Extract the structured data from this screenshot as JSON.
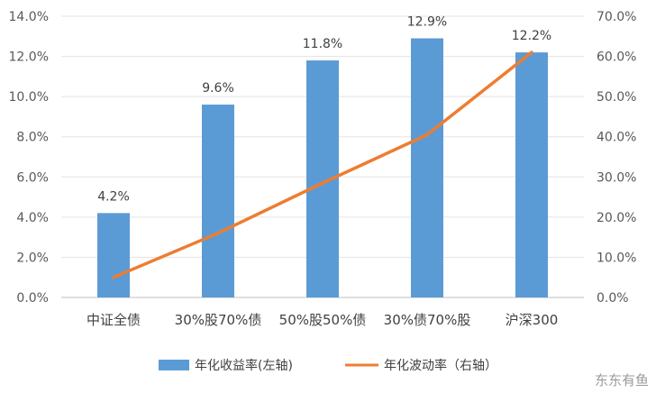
{
  "chart_data": {
    "type": "bar",
    "categories": [
      "中证全债",
      "30%股70%债",
      "50%股50%债",
      "30%债70%股",
      "沪深300"
    ],
    "series": [
      {
        "name": "年化收益率(左轴)",
        "type": "bar",
        "axis": "left",
        "values": [
          4.2,
          9.6,
          11.8,
          12.9,
          12.2
        ],
        "labels": [
          "4.2%",
          "9.6%",
          "11.8%",
          "12.9%",
          "12.2%"
        ],
        "color": "#5b9bd5"
      },
      {
        "name": "年化波动率（右轴）",
        "type": "line",
        "axis": "right",
        "values": [
          5.0,
          16.0,
          28.5,
          40.5,
          61.0
        ],
        "color": "#ed7d31"
      }
    ],
    "y_left": {
      "lim": [
        0,
        14
      ],
      "ticks": [
        0,
        2,
        4,
        6,
        8,
        10,
        12,
        14
      ],
      "tick_labels": [
        "0.0%",
        "2.0%",
        "4.0%",
        "6.0%",
        "8.0%",
        "10.0%",
        "12.0%",
        "14.0%"
      ]
    },
    "y_right": {
      "lim": [
        0,
        70
      ],
      "ticks": [
        0,
        10,
        20,
        30,
        40,
        50,
        60,
        70
      ],
      "tick_labels": [
        "0.0%",
        "10.0%",
        "20.0%",
        "30.0%",
        "40.0%",
        "50.0%",
        "60.0%",
        "70.0%"
      ]
    },
    "grid": true,
    "legend": "bottom"
  },
  "watermark": "东东有鱼"
}
